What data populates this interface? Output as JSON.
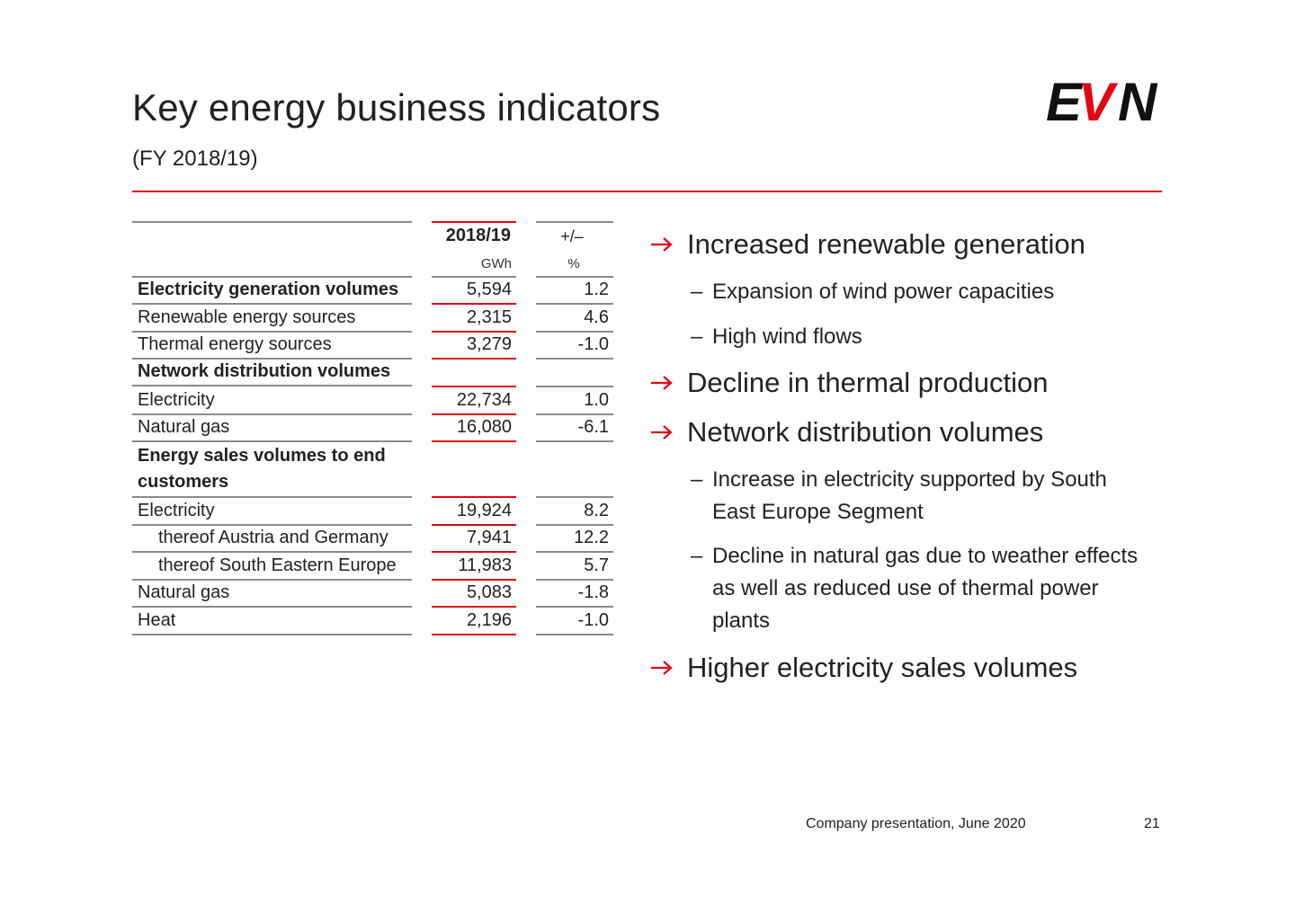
{
  "header": {
    "title": "Key energy business indicators",
    "subtitle": "(FY 2018/19)",
    "logo_text": "EVN",
    "accent_color": "#e30613"
  },
  "table": {
    "col_year": "2018/19",
    "col_change": "+/–",
    "unit_year": "GWh",
    "unit_change": "%",
    "rows": [
      {
        "label": "Electricity generation volumes",
        "value": "5,594",
        "change": "1.2"
      },
      {
        "label": "Renewable energy sources",
        "value": "2,315",
        "change": "4.6"
      },
      {
        "label": "Thermal energy sources",
        "value": "3,279",
        "change": "-1.0"
      },
      {
        "label": "Network distribution volumes",
        "value": "",
        "change": ""
      },
      {
        "label": "Electricity",
        "value": "22,734",
        "change": "1.0"
      },
      {
        "label": "Natural gas",
        "value": "16,080",
        "change": "-6.1"
      },
      {
        "label": "Energy sales volumes to end",
        "label2": "customers",
        "value": "",
        "change": ""
      },
      {
        "label": "Electricity",
        "value": "19,924",
        "change": "8.2"
      },
      {
        "label": "thereof Austria and Germany",
        "value": "7,941",
        "change": "12.2"
      },
      {
        "label": "thereof South Eastern Europe",
        "value": "11,983",
        "change": "5.7"
      },
      {
        "label": "Natural gas",
        "value": "5,083",
        "change": "-1.8"
      },
      {
        "label": "Heat",
        "value": "2,196",
        "change": "-1.0"
      }
    ]
  },
  "bullets": {
    "b1": "Increased renewable generation",
    "b1_s1": "Expansion of wind power capacities",
    "b1_s2": "High wind flows",
    "b2": "Decline in thermal production",
    "b3": "Network distribution volumes",
    "b3_s1": "Increase in electricity supported by South East Europe Segment",
    "b3_s2": "Decline in natural gas due to weather effects as well as reduced use of thermal power plants",
    "b4": "Higher electricity sales volumes",
    "dash": "–"
  },
  "footer": {
    "text": "Company presentation, June 2020",
    "page": "21"
  }
}
